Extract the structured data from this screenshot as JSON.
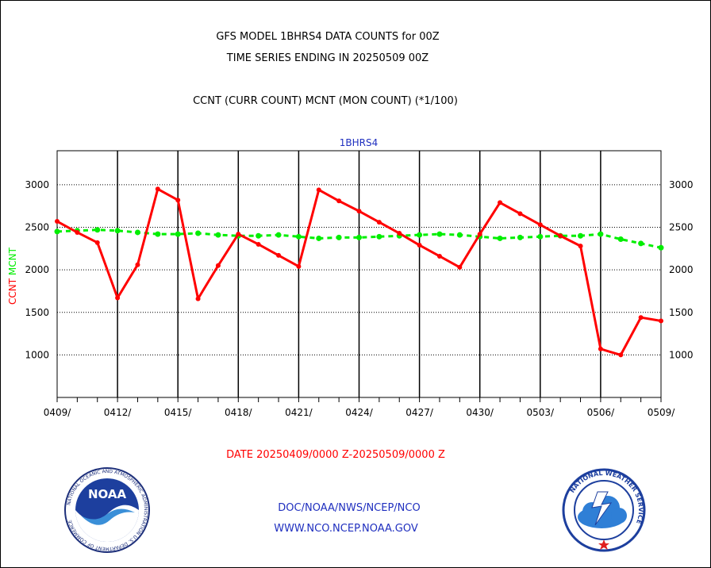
{
  "header": {
    "title_line1": "GFS MODEL 1BHRS4 DATA COUNTS for 00Z",
    "title_line2": "TIME SERIES ENDING IN 20250509 00Z",
    "subtitle": "CCNT (CURR COUNT) MCNT (MON COUNT) (*1/100)"
  },
  "footer": {
    "date_range": "DATE 20250409/0000 Z-20250509/0000 Z",
    "org_path": "DOC/NOAA/NWS/NCEP/NCO",
    "website": "WWW.NCO.NCEP.NOAA.GOV"
  },
  "logos": {
    "left": {
      "name": "noaa-logo",
      "text": "NOAA",
      "ring_text": "NATIONAL OCEANIC AND ATMOSPHERIC ADMINISTRATION U.S. DEPARTMENT OF COMMERCE"
    },
    "right": {
      "name": "nws-logo",
      "ring_text": "NATIONAL WEATHER SERVICE"
    }
  },
  "chart_data": {
    "type": "line",
    "title": "1BHRS4",
    "ylabel_series1": "CCNT",
    "ylabel_series2": "MCNT",
    "ylim": [
      500,
      3400
    ],
    "yticks": [
      1000,
      1500,
      2000,
      2500,
      3000
    ],
    "xlim": [
      0,
      30
    ],
    "xticks": [
      {
        "x": 0,
        "label": "0409/"
      },
      {
        "x": 3,
        "label": "0412/"
      },
      {
        "x": 6,
        "label": "0415/"
      },
      {
        "x": 9,
        "label": "0418/"
      },
      {
        "x": 12,
        "label": "0421/"
      },
      {
        "x": 15,
        "label": "0424/"
      },
      {
        "x": 18,
        "label": "0427/"
      },
      {
        "x": 21,
        "label": "0430/"
      },
      {
        "x": 24,
        "label": "0503/"
      },
      {
        "x": 27,
        "label": "0506/"
      },
      {
        "x": 30,
        "label": "0509/"
      }
    ],
    "grid": true,
    "series": [
      {
        "name": "CCNT",
        "color": "#ff0000",
        "style": "solid",
        "x": [
          0,
          1,
          2,
          3,
          4,
          5,
          6,
          7,
          8,
          9,
          10,
          11,
          12,
          13,
          14,
          15,
          16,
          17,
          18,
          19,
          20,
          21,
          22,
          23,
          24,
          25,
          26,
          27,
          28,
          29,
          30
        ],
        "values": [
          2570,
          2440,
          2320,
          1670,
          2060,
          2950,
          2820,
          1660,
          2050,
          2420,
          2300,
          2170,
          2040,
          2940,
          2810,
          2690,
          2560,
          2430,
          2290,
          2160,
          2030,
          2420,
          2790,
          2660,
          2530,
          2400,
          2280,
          1070,
          1000,
          1440,
          1400
        ]
      },
      {
        "name": "MCNT",
        "color": "#00ee00",
        "style": "dashed",
        "x": [
          0,
          1,
          2,
          3,
          4,
          5,
          6,
          7,
          8,
          9,
          10,
          11,
          12,
          13,
          14,
          15,
          16,
          17,
          18,
          19,
          20,
          21,
          22,
          23,
          24,
          25,
          26,
          27,
          28,
          29,
          30
        ],
        "values": [
          2450,
          2460,
          2470,
          2460,
          2440,
          2420,
          2420,
          2430,
          2410,
          2400,
          2400,
          2410,
          2390,
          2370,
          2380,
          2380,
          2390,
          2400,
          2410,
          2420,
          2410,
          2390,
          2370,
          2380,
          2390,
          2400,
          2400,
          2420,
          2360,
          2310,
          2260
        ]
      }
    ]
  }
}
